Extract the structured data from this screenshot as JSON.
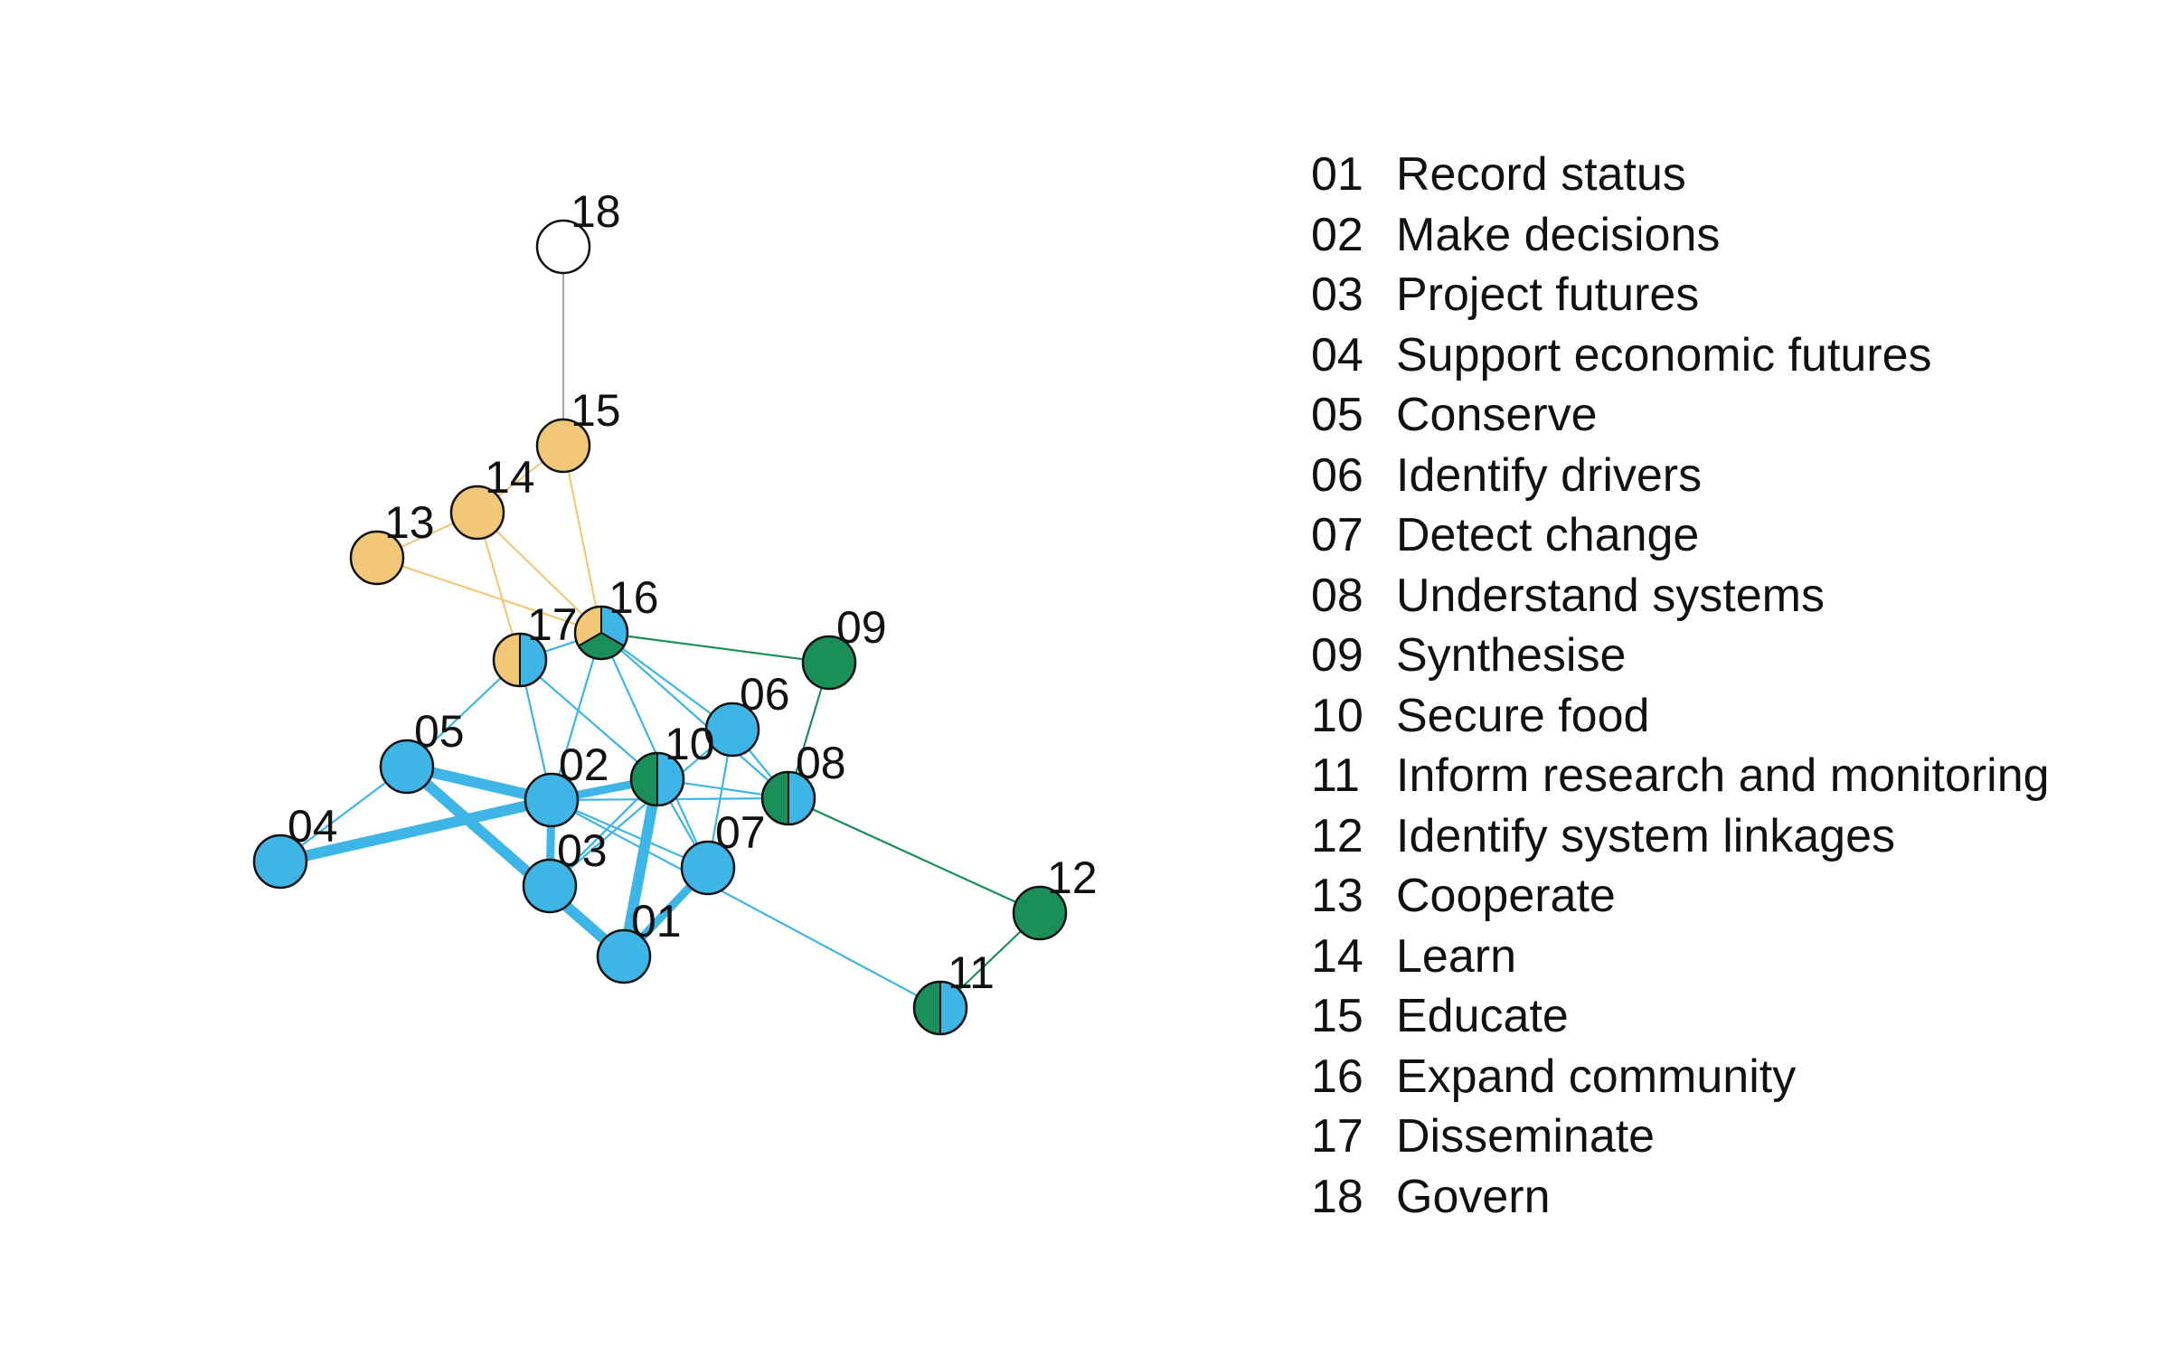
{
  "colors": {
    "blue": "#3db5e6",
    "green": "#1b8f5a",
    "yellow": "#f2c878",
    "white": "#ffffff",
    "gray": "#aaaaaa",
    "outline": "#111111"
  },
  "nodes": [
    {
      "id": "01",
      "label": "01",
      "colors": [
        "blue"
      ]
    },
    {
      "id": "02",
      "label": "02",
      "colors": [
        "blue"
      ]
    },
    {
      "id": "03",
      "label": "03",
      "colors": [
        "blue"
      ]
    },
    {
      "id": "04",
      "label": "04",
      "colors": [
        "blue"
      ]
    },
    {
      "id": "05",
      "label": "05",
      "colors": [
        "blue"
      ]
    },
    {
      "id": "06",
      "label": "06",
      "colors": [
        "blue"
      ]
    },
    {
      "id": "07",
      "label": "07",
      "colors": [
        "blue"
      ]
    },
    {
      "id": "08",
      "label": "08",
      "colors": [
        "blue",
        "green"
      ]
    },
    {
      "id": "09",
      "label": "09",
      "colors": [
        "green"
      ]
    },
    {
      "id": "10",
      "label": "10",
      "colors": [
        "blue",
        "green"
      ]
    },
    {
      "id": "11",
      "label": "11",
      "colors": [
        "blue",
        "green"
      ]
    },
    {
      "id": "12",
      "label": "12",
      "colors": [
        "green"
      ]
    },
    {
      "id": "13",
      "label": "13",
      "colors": [
        "yellow"
      ]
    },
    {
      "id": "14",
      "label": "14",
      "colors": [
        "yellow"
      ]
    },
    {
      "id": "15",
      "label": "15",
      "colors": [
        "yellow"
      ]
    },
    {
      "id": "16",
      "label": "16",
      "colors": [
        "blue",
        "green",
        "yellow"
      ]
    },
    {
      "id": "17",
      "label": "17",
      "colors": [
        "blue",
        "yellow"
      ]
    },
    {
      "id": "18",
      "label": "18",
      "colors": [
        "white"
      ]
    }
  ],
  "edges": [
    {
      "from": "04",
      "to": "02",
      "weight": 5,
      "color": "blue"
    },
    {
      "from": "05",
      "to": "02",
      "weight": 5,
      "color": "blue"
    },
    {
      "from": "05",
      "to": "01",
      "weight": 5,
      "color": "blue"
    },
    {
      "from": "10",
      "to": "01",
      "weight": 5,
      "color": "blue"
    },
    {
      "from": "02",
      "to": "03",
      "weight": 3,
      "color": "blue"
    },
    {
      "from": "02",
      "to": "10",
      "weight": 3,
      "color": "blue"
    },
    {
      "from": "01",
      "to": "07",
      "weight": 3,
      "color": "blue"
    },
    {
      "from": "04",
      "to": "05",
      "weight": 1,
      "color": "blue"
    },
    {
      "from": "05",
      "to": "17",
      "weight": 1,
      "color": "blue"
    },
    {
      "from": "17",
      "to": "02",
      "weight": 1,
      "color": "blue"
    },
    {
      "from": "17",
      "to": "16",
      "weight": 1,
      "color": "blue"
    },
    {
      "from": "17",
      "to": "10",
      "weight": 1,
      "color": "blue"
    },
    {
      "from": "16",
      "to": "02",
      "weight": 1,
      "color": "blue"
    },
    {
      "from": "16",
      "to": "08",
      "weight": 1,
      "color": "blue"
    },
    {
      "from": "16",
      "to": "06",
      "weight": 1,
      "color": "blue"
    },
    {
      "from": "16",
      "to": "07",
      "weight": 1,
      "color": "blue"
    },
    {
      "from": "02",
      "to": "07",
      "weight": 1,
      "color": "blue"
    },
    {
      "from": "02",
      "to": "08",
      "weight": 1,
      "color": "blue"
    },
    {
      "from": "02",
      "to": "11",
      "weight": 1,
      "color": "blue"
    },
    {
      "from": "03",
      "to": "06",
      "weight": 1,
      "color": "blue"
    },
    {
      "from": "03",
      "to": "10",
      "weight": 1,
      "color": "blue"
    },
    {
      "from": "10",
      "to": "08",
      "weight": 1,
      "color": "blue"
    },
    {
      "from": "10",
      "to": "07",
      "weight": 1,
      "color": "blue"
    },
    {
      "from": "07",
      "to": "06",
      "weight": 1,
      "color": "blue"
    },
    {
      "from": "06",
      "to": "08",
      "weight": 1,
      "color": "blue"
    },
    {
      "from": "16",
      "to": "09",
      "weight": 1,
      "color": "green"
    },
    {
      "from": "09",
      "to": "08",
      "weight": 1,
      "color": "green"
    },
    {
      "from": "08",
      "to": "12",
      "weight": 1,
      "color": "green"
    },
    {
      "from": "12",
      "to": "11",
      "weight": 1,
      "color": "green"
    },
    {
      "from": "13",
      "to": "14",
      "weight": 1,
      "color": "yellow"
    },
    {
      "from": "14",
      "to": "15",
      "weight": 1,
      "color": "yellow"
    },
    {
      "from": "13",
      "to": "16",
      "weight": 1,
      "color": "yellow"
    },
    {
      "from": "14",
      "to": "16",
      "weight": 1,
      "color": "yellow"
    },
    {
      "from": "15",
      "to": "16",
      "weight": 1,
      "color": "yellow"
    },
    {
      "from": "14",
      "to": "17",
      "weight": 1,
      "color": "yellow"
    },
    {
      "from": "15",
      "to": "18",
      "weight": 1,
      "color": "gray"
    }
  ],
  "legend": [
    {
      "code": "01",
      "label": "Record status"
    },
    {
      "code": "02",
      "label": "Make decisions"
    },
    {
      "code": "03",
      "label": "Project futures"
    },
    {
      "code": "04",
      "label": "Support economic futures"
    },
    {
      "code": "05",
      "label": "Conserve"
    },
    {
      "code": "06",
      "label": "Identify drivers"
    },
    {
      "code": "07",
      "label": "Detect change"
    },
    {
      "code": "08",
      "label": "Understand systems"
    },
    {
      "code": "09",
      "label": "Synthesise"
    },
    {
      "code": "10",
      "label": "Secure food"
    },
    {
      "code": "11",
      "label": "Inform research and monitoring"
    },
    {
      "code": "12",
      "label": "Identify system linkages"
    },
    {
      "code": "13",
      "label": "Cooperate"
    },
    {
      "code": "14",
      "label": "Learn"
    },
    {
      "code": "15",
      "label": "Educate"
    },
    {
      "code": "16",
      "label": "Expand community"
    },
    {
      "code": "17",
      "label": "Disseminate"
    },
    {
      "code": "18",
      "label": "Govern"
    }
  ]
}
